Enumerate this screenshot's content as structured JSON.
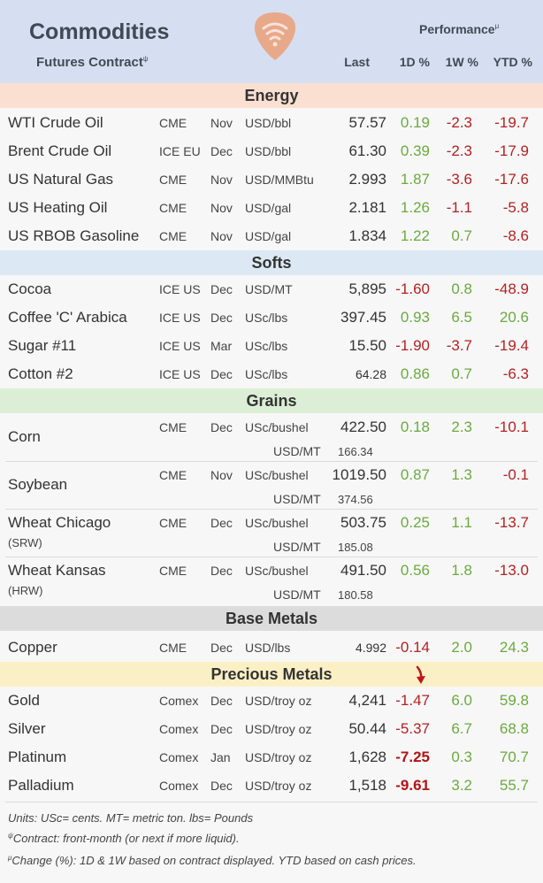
{
  "header": {
    "title": "Commodities",
    "subtitle": "Futures Contract",
    "subtitle_mark": "ψ",
    "performance": "Performance",
    "performance_mark": "μ",
    "col_last": "Last",
    "col_1d": "1D %",
    "col_1w": "1W %",
    "col_ytd": "YTD %"
  },
  "sections": {
    "energy": "Energy",
    "softs": "Softs",
    "grains": "Grains",
    "base": "Base Metals",
    "precious": "Precious Metals"
  },
  "energy": [
    {
      "name": "WTI Crude Oil",
      "exchange": "CME",
      "month": "Nov",
      "unit": "USD/bbl",
      "last": "57.57",
      "d1": "0.19",
      "w1": "-2.3",
      "ytd": "-19.7"
    },
    {
      "name": "Brent Crude Oil",
      "exchange": "ICE EU",
      "month": "Dec",
      "unit": "USD/bbl",
      "last": "61.30",
      "d1": "0.39",
      "w1": "-2.3",
      "ytd": "-17.9"
    },
    {
      "name": "US Natural Gas",
      "exchange": "CME",
      "month": "Nov",
      "unit": "USD/MMBtu",
      "last": "2.993",
      "d1": "1.87",
      "w1": "-3.6",
      "ytd": "-17.6"
    },
    {
      "name": "US Heating Oil",
      "exchange": "CME",
      "month": "Nov",
      "unit": "USD/gal",
      "last": "2.181",
      "d1": "1.26",
      "w1": "-1.1",
      "ytd": "-5.8"
    },
    {
      "name": "US RBOB Gasoline",
      "exchange": "CME",
      "month": "Nov",
      "unit": "USD/gal",
      "last": "1.834",
      "d1": "1.22",
      "w1": "0.7",
      "ytd": "-8.6"
    }
  ],
  "softs": [
    {
      "name": "Cocoa",
      "exchange": "ICE US",
      "month": "Dec",
      "unit": "USD/MT",
      "last": "5,895",
      "d1": "-1.60",
      "w1": "0.8",
      "ytd": "-48.9"
    },
    {
      "name": "Coffee 'C' Arabica",
      "exchange": "ICE US",
      "month": "Dec",
      "unit": "USc/lbs",
      "last": "397.45",
      "d1": "0.93",
      "w1": "6.5",
      "ytd": "20.6"
    },
    {
      "name": "Sugar #11",
      "exchange": "ICE US",
      "month": "Mar",
      "unit": "USc/lbs",
      "last": "15.50",
      "d1": "-1.90",
      "w1": "-3.7",
      "ytd": "-19.4"
    },
    {
      "name": "Cotton #2",
      "exchange": "ICE US",
      "month": "Dec",
      "unit": "USc/lbs",
      "last": "64.28",
      "d1": "0.86",
      "w1": "0.7",
      "ytd": "-6.3"
    }
  ],
  "grains": [
    {
      "name": "Corn",
      "sub": "",
      "exchange": "CME",
      "month": "Dec",
      "unit": "USc/bushel",
      "last": "422.50",
      "unit2": "USD/MT",
      "last2": "166.34",
      "d1": "0.18",
      "w1": "2.3",
      "ytd": "-10.1"
    },
    {
      "name": "Soybean",
      "sub": "",
      "exchange": "CME",
      "month": "Nov",
      "unit": "USc/bushel",
      "last": "1019.50",
      "unit2": "USD/MT",
      "last2": "374.56",
      "d1": "0.87",
      "w1": "1.3",
      "ytd": "-0.1"
    },
    {
      "name": "Wheat Chicago",
      "sub": "(SRW)",
      "exchange": "CME",
      "month": "Dec",
      "unit": "USc/bushel",
      "last": "503.75",
      "unit2": "USD/MT",
      "last2": "185.08",
      "d1": "0.25",
      "w1": "1.1",
      "ytd": "-13.7"
    },
    {
      "name": "Wheat Kansas",
      "sub": "(HRW)",
      "exchange": "CME",
      "month": "Dec",
      "unit": "USc/bushel",
      "last": "491.50",
      "unit2": "USD/MT",
      "last2": "180.58",
      "d1": "0.56",
      "w1": "1.8",
      "ytd": "-13.0"
    }
  ],
  "base": [
    {
      "name": "Copper",
      "exchange": "CME",
      "month": "Dec",
      "unit": "USD/lbs",
      "last": "4.992",
      "d1": "-0.14",
      "w1": "2.0",
      "ytd": "24.3"
    }
  ],
  "precious": [
    {
      "name": "Gold",
      "exchange": "Comex",
      "month": "Dec",
      "unit": "USD/troy oz",
      "last": "4,241",
      "d1": "-1.47",
      "w1": "6.0",
      "ytd": "59.8"
    },
    {
      "name": "Silver",
      "exchange": "Comex",
      "month": "Dec",
      "unit": "USD/troy oz",
      "last": "50.44",
      "d1": "-5.37",
      "w1": "6.7",
      "ytd": "68.8"
    },
    {
      "name": "Platinum",
      "exchange": "Comex",
      "month": "Jan",
      "unit": "USD/troy oz",
      "last": "1,628",
      "d1": "-7.25",
      "w1": "0.3",
      "ytd": "70.7"
    },
    {
      "name": "Palladium",
      "exchange": "Comex",
      "month": "Dec",
      "unit": "USD/troy oz",
      "last": "1,518",
      "d1": "-9.61",
      "w1": "3.2",
      "ytd": "55.7"
    }
  ],
  "footer": {
    "units": "Units: USc= cents.  MT= metric ton.  lbs= Pounds",
    "contract_mark": "ψ",
    "contract": "Contract: front-month (or next if more liquid).",
    "change_mark": "μ",
    "change": "Change (%): 1D & 1W based on contract displayed. YTD based on cash prices."
  },
  "colors": {
    "positive": "#6aab3f",
    "negative": "#b22222",
    "header_bg": "#d5dff1",
    "energy_bg": "#fbe0d2",
    "softs_bg": "#dce8f4",
    "grains_bg": "#dcefd6",
    "base_bg": "#dcdcdc",
    "precious_bg": "#fbf0c5",
    "logo": "#e8a98a",
    "arrow": "#c0141a"
  }
}
